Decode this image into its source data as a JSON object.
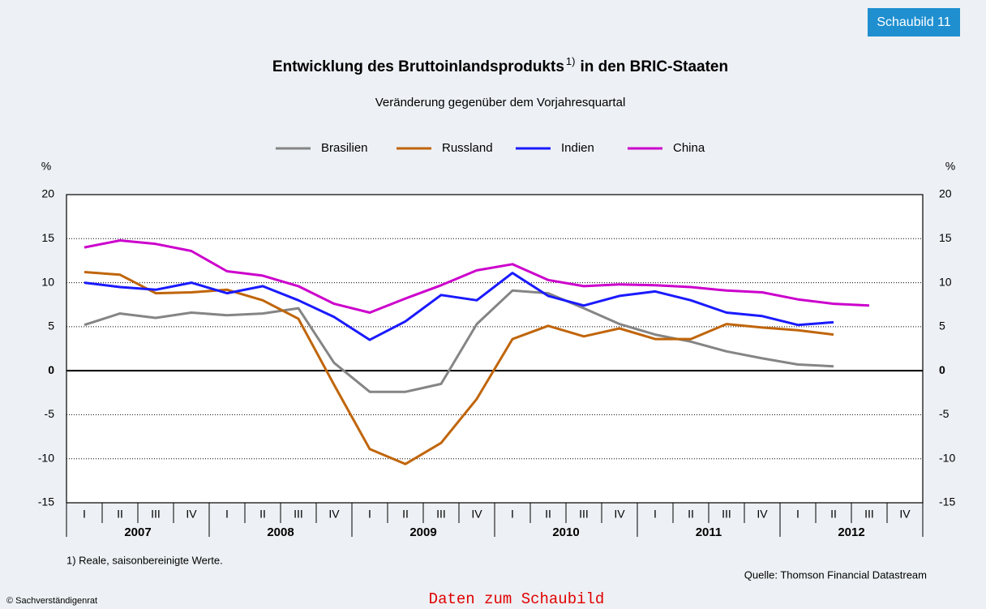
{
  "badge": "Schaubild 11",
  "chart_data": {
    "type": "line",
    "title": "Entwicklung des Bruttoinlandsprodukts",
    "title_note": "1)",
    "title_end": "in den BRIC-Staaten",
    "subtitle": "Veränderung gegenüber dem Vorjahresquartal",
    "ylabel": "%",
    "y2label": "%",
    "categories": [
      "I",
      "II",
      "III",
      "IV",
      "I",
      "II",
      "III",
      "IV",
      "I",
      "II",
      "III",
      "IV",
      "I",
      "II",
      "III",
      "IV",
      "I",
      "II",
      "III",
      "IV",
      "I",
      "II",
      "III",
      "IV"
    ],
    "years": [
      "2007",
      "2008",
      "2009",
      "2010",
      "2011",
      "2012"
    ],
    "ylim": [
      -15,
      20
    ],
    "yticks": [
      -15,
      -10,
      -5,
      0,
      5,
      10,
      15,
      20
    ],
    "y2lim": [
      -15,
      20
    ],
    "y2ticks": [
      -15,
      -10,
      -5,
      0,
      5,
      10,
      15,
      20
    ],
    "grid": true,
    "series": [
      {
        "name": "Brasilien",
        "color": "#858585",
        "values": [
          5.2,
          6.5,
          6.0,
          6.6,
          6.3,
          6.5,
          7.1,
          0.9,
          -2.4,
          -2.4,
          -1.5,
          5.3,
          9.1,
          8.8,
          7.1,
          5.3,
          4.1,
          3.3,
          2.2,
          1.4,
          0.7,
          0.5,
          null,
          null
        ]
      },
      {
        "name": "Russland",
        "color": "#c0650a",
        "values": [
          11.2,
          10.9,
          8.8,
          8.9,
          9.2,
          8.0,
          5.9,
          -1.6,
          -8.9,
          -10.6,
          -8.2,
          -3.2,
          3.6,
          5.1,
          3.9,
          4.8,
          3.6,
          3.6,
          5.3,
          4.9,
          4.6,
          4.1,
          null,
          null
        ]
      },
      {
        "name": "Indien",
        "color": "#1a1aff",
        "values": [
          10.0,
          9.5,
          9.2,
          10.0,
          8.8,
          9.6,
          8.0,
          6.1,
          3.5,
          5.6,
          8.6,
          8.0,
          11.1,
          8.5,
          7.4,
          8.5,
          9.0,
          8.0,
          6.6,
          6.2,
          5.2,
          5.5,
          null,
          null
        ]
      },
      {
        "name": "China",
        "color": "#cc00cc",
        "values": [
          14.0,
          14.8,
          14.4,
          13.6,
          11.3,
          10.8,
          9.6,
          7.6,
          6.6,
          8.2,
          9.7,
          11.4,
          12.1,
          10.3,
          9.6,
          9.8,
          9.7,
          9.5,
          9.1,
          8.9,
          8.1,
          7.6,
          7.4,
          null
        ]
      }
    ]
  },
  "footnote": "1) Reale, saisonbereinigte Werte.",
  "source": "Quelle: Thomson Financial Datastream",
  "copyright": "© Sachverständigenrat",
  "link": "Daten zum Schaubild"
}
